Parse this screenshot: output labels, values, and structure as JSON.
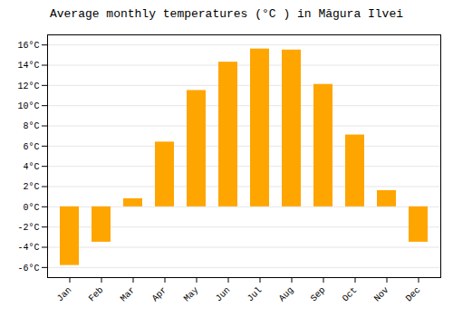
{
  "chart_data": {
    "type": "bar",
    "title": "Average monthly temperatures (°C ) in Măgura Ilvei",
    "categories": [
      "Jan",
      "Feb",
      "Mar",
      "Apr",
      "May",
      "Jun",
      "Jul",
      "Aug",
      "Sep",
      "Oct",
      "Nov",
      "Dec"
    ],
    "values": [
      -5.8,
      -3.5,
      0.8,
      6.4,
      11.5,
      14.3,
      15.6,
      15.5,
      12.1,
      7.1,
      1.6,
      -3.5
    ],
    "color": "#FFA500",
    "ylim": [
      -7,
      17
    ],
    "yticks": [
      {
        "value": -6,
        "label": "-6°C"
      },
      {
        "value": -4,
        "label": "-4°C"
      },
      {
        "value": -2,
        "label": "-2°C"
      },
      {
        "value": 0,
        "label": "0°C"
      },
      {
        "value": 2,
        "label": "2°C"
      },
      {
        "value": 4,
        "label": "4°C"
      },
      {
        "value": 6,
        "label": "6°C"
      },
      {
        "value": 8,
        "label": "8°C"
      },
      {
        "value": 10,
        "label": "10°C"
      },
      {
        "value": 12,
        "label": "12°C"
      },
      {
        "value": 14,
        "label": "14°C"
      },
      {
        "value": 16,
        "label": "16°C"
      }
    ],
    "grid": true
  }
}
